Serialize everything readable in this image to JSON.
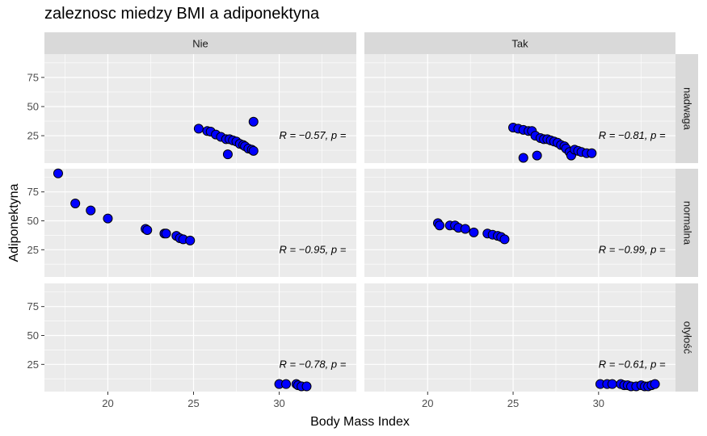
{
  "chart_data": {
    "type": "scatter",
    "title": "zaleznosc miedzy BMI a adiponektyna",
    "xlabel": "Body Mass Index",
    "ylabel": "Adiponektyna",
    "xlim": [
      16.3,
      34.5
    ],
    "ylim": [
      1.5,
      95
    ],
    "x_ticks": [
      20,
      25,
      30
    ],
    "y_ticks": [
      25,
      50,
      75
    ],
    "grid": true,
    "point_color": "#0000ff",
    "point_stroke": "#000000",
    "panel_background": "#ebebeb",
    "strip_background": "#d9d9d9",
    "columns": [
      "Nie",
      "Tak"
    ],
    "rows": [
      "nadwaga",
      "normalna",
      "otyłość"
    ],
    "panels": [
      {
        "row": "nadwaga",
        "col": "Nie",
        "annotation": "R = −0.57, p =",
        "points": [
          [
            25.3,
            31
          ],
          [
            25.8,
            29
          ],
          [
            26.0,
            28.5
          ],
          [
            26.3,
            26
          ],
          [
            26.6,
            24
          ],
          [
            26.9,
            22
          ],
          [
            27.0,
            9
          ],
          [
            27.1,
            22
          ],
          [
            27.3,
            21
          ],
          [
            27.5,
            20
          ],
          [
            27.7,
            18
          ],
          [
            27.9,
            17
          ],
          [
            28.0,
            16
          ],
          [
            28.2,
            14
          ],
          [
            28.4,
            13
          ],
          [
            28.5,
            12
          ],
          [
            28.5,
            37
          ]
        ]
      },
      {
        "row": "nadwaga",
        "col": "Tak",
        "annotation": "R = −0.81, p =",
        "points": [
          [
            25.0,
            32
          ],
          [
            25.3,
            31
          ],
          [
            25.6,
            30
          ],
          [
            25.6,
            6
          ],
          [
            25.9,
            29
          ],
          [
            26.1,
            29
          ],
          [
            26.3,
            25
          ],
          [
            26.4,
            8
          ],
          [
            26.6,
            23
          ],
          [
            26.8,
            22
          ],
          [
            27.0,
            22
          ],
          [
            27.2,
            21
          ],
          [
            27.4,
            20
          ],
          [
            27.6,
            19
          ],
          [
            27.8,
            17
          ],
          [
            28.0,
            16
          ],
          [
            28.1,
            14
          ],
          [
            28.3,
            11
          ],
          [
            28.4,
            8
          ],
          [
            28.6,
            13
          ],
          [
            28.8,
            12
          ],
          [
            29.0,
            11
          ],
          [
            29.3,
            10
          ],
          [
            29.6,
            10
          ]
        ]
      },
      {
        "row": "normalna",
        "col": "Nie",
        "annotation": "R = −0.95, p =",
        "points": [
          [
            17.1,
            91
          ],
          [
            18.1,
            65
          ],
          [
            19.0,
            59
          ],
          [
            20.0,
            52
          ],
          [
            22.2,
            43
          ],
          [
            22.3,
            42
          ],
          [
            23.3,
            39
          ],
          [
            23.4,
            39
          ],
          [
            24.0,
            37
          ],
          [
            24.2,
            35
          ],
          [
            24.4,
            34
          ],
          [
            24.8,
            33
          ]
        ]
      },
      {
        "row": "normalna",
        "col": "Tak",
        "annotation": "R = −0.99, p =",
        "points": [
          [
            20.6,
            48
          ],
          [
            20.7,
            46
          ],
          [
            21.3,
            46
          ],
          [
            21.6,
            46
          ],
          [
            21.8,
            44
          ],
          [
            22.2,
            43
          ],
          [
            22.7,
            40
          ],
          [
            23.5,
            39
          ],
          [
            23.8,
            38
          ],
          [
            24.1,
            37
          ],
          [
            24.3,
            36
          ],
          [
            24.5,
            34
          ]
        ]
      },
      {
        "row": "otyłość",
        "col": "Nie",
        "annotation": "R = −0.78, p =",
        "points": [
          [
            30.0,
            8
          ],
          [
            30.4,
            8
          ],
          [
            31.0,
            8
          ],
          [
            31.1,
            7
          ],
          [
            31.3,
            6
          ],
          [
            31.6,
            6
          ]
        ]
      },
      {
        "row": "otyłość",
        "col": "Tak",
        "annotation": "R = −0.61, p =",
        "points": [
          [
            30.1,
            8
          ],
          [
            30.5,
            8
          ],
          [
            30.8,
            8
          ],
          [
            31.3,
            8
          ],
          [
            31.5,
            7
          ],
          [
            31.7,
            7
          ],
          [
            31.9,
            6
          ],
          [
            32.2,
            6
          ],
          [
            32.5,
            7
          ],
          [
            32.7,
            6
          ],
          [
            32.9,
            6
          ],
          [
            33.1,
            7
          ],
          [
            33.3,
            8
          ]
        ]
      }
    ]
  }
}
